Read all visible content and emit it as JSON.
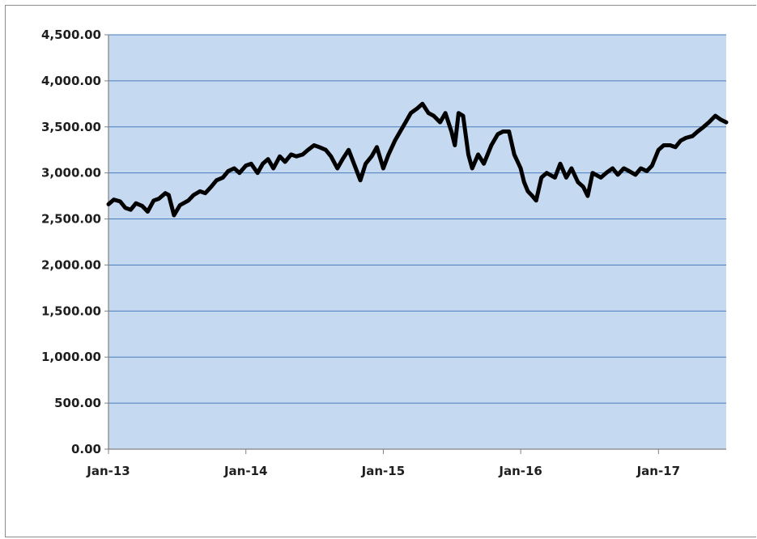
{
  "chart_data": {
    "type": "line",
    "title": "",
    "xlabel": "",
    "ylabel": "",
    "ylim": [
      0,
      4500
    ],
    "xlim": [
      "2013-01-01",
      "2017-06-30"
    ],
    "y_ticks": [
      0,
      500,
      1000,
      1500,
      2000,
      2500,
      3000,
      3500,
      4000,
      4500
    ],
    "y_tick_labels": [
      "0.00",
      "500.00",
      "1,000.00",
      "1,500.00",
      "2,000.00",
      "2,500.00",
      "3,000.00",
      "3,500.00",
      "4,000.00",
      "4,500.00"
    ],
    "x_ticks": [
      "2013-01-01",
      "2014-01-01",
      "2015-01-01",
      "2016-01-01",
      "2017-01-01"
    ],
    "x_tick_labels": [
      "Jan-13",
      "Jan-14",
      "Jan-15",
      "Jan-16",
      "Jan-17"
    ],
    "grid": true,
    "legend": "none",
    "colors": {
      "plot_background": "#c5d9f1",
      "gridline": "#4a7ebb",
      "series_line": "#000000"
    },
    "series": [
      {
        "x": [
          "2013-01-01",
          "2013-01-15",
          "2013-02-01",
          "2013-02-15",
          "2013-03-01",
          "2013-03-15",
          "2013-04-01",
          "2013-04-15",
          "2013-05-01",
          "2013-05-15",
          "2013-06-01",
          "2013-06-10",
          "2013-06-24",
          "2013-07-10",
          "2013-08-01",
          "2013-08-15",
          "2013-09-01",
          "2013-09-15",
          "2013-10-01",
          "2013-10-15",
          "2013-11-01",
          "2013-11-15",
          "2013-12-01",
          "2013-12-15",
          "2014-01-01",
          "2014-01-15",
          "2014-02-01",
          "2014-02-15",
          "2014-03-01",
          "2014-03-15",
          "2014-04-01",
          "2014-04-15",
          "2014-05-01",
          "2014-05-15",
          "2014-06-01",
          "2014-06-15",
          "2014-07-01",
          "2014-07-15",
          "2014-08-01",
          "2014-08-15",
          "2014-09-01",
          "2014-09-15",
          "2014-10-01",
          "2014-10-15",
          "2014-11-01",
          "2014-11-15",
          "2014-12-01",
          "2014-12-15",
          "2015-01-01",
          "2015-01-15",
          "2015-02-01",
          "2015-02-15",
          "2015-03-01",
          "2015-03-15",
          "2015-04-01",
          "2015-04-15",
          "2015-05-01",
          "2015-05-15",
          "2015-06-01",
          "2015-06-15",
          "2015-07-01",
          "2015-07-10",
          "2015-07-20",
          "2015-08-01",
          "2015-08-15",
          "2015-08-25",
          "2015-09-10",
          "2015-09-25",
          "2015-10-15",
          "2015-11-01",
          "2015-11-15",
          "2015-12-01",
          "2015-12-15",
          "2016-01-01",
          "2016-01-10",
          "2016-01-20",
          "2016-02-01",
          "2016-02-11",
          "2016-02-25",
          "2016-03-10",
          "2016-04-01",
          "2016-04-15",
          "2016-05-01",
          "2016-05-15",
          "2016-06-01",
          "2016-06-15",
          "2016-06-27",
          "2016-07-10",
          "2016-08-01",
          "2016-08-15",
          "2016-09-01",
          "2016-09-15",
          "2016-10-01",
          "2016-10-15",
          "2016-11-01",
          "2016-11-15",
          "2016-12-01",
          "2016-12-15",
          "2017-01-01",
          "2017-01-15",
          "2017-02-01",
          "2017-02-15",
          "2017-03-01",
          "2017-03-15",
          "2017-04-01",
          "2017-04-15",
          "2017-05-01",
          "2017-05-15",
          "2017-06-01",
          "2017-06-15",
          "2017-06-30"
        ],
        "y": [
          2660,
          2710,
          2690,
          2620,
          2600,
          2670,
          2640,
          2580,
          2700,
          2720,
          2780,
          2760,
          2540,
          2650,
          2700,
          2760,
          2800,
          2780,
          2850,
          2920,
          2950,
          3020,
          3050,
          3000,
          3080,
          3100,
          3000,
          3100,
          3150,
          3050,
          3180,
          3120,
          3200,
          3180,
          3200,
          3250,
          3300,
          3280,
          3250,
          3180,
          3050,
          3150,
          3250,
          3100,
          2920,
          3100,
          3180,
          3280,
          3050,
          3200,
          3350,
          3450,
          3550,
          3650,
          3700,
          3750,
          3650,
          3620,
          3550,
          3650,
          3450,
          3300,
          3650,
          3620,
          3200,
          3050,
          3200,
          3100,
          3300,
          3420,
          3450,
          3450,
          3200,
          3050,
          2900,
          2800,
          2750,
          2700,
          2950,
          3000,
          2950,
          3100,
          2950,
          3050,
          2900,
          2850,
          2750,
          3000,
          2950,
          3000,
          3050,
          2980,
          3050,
          3020,
          2980,
          3050,
          3020,
          3080,
          3250,
          3300,
          3300,
          3280,
          3350,
          3380,
          3400,
          3450,
          3500,
          3550,
          3620,
          3580,
          3550
        ]
      }
    ]
  }
}
